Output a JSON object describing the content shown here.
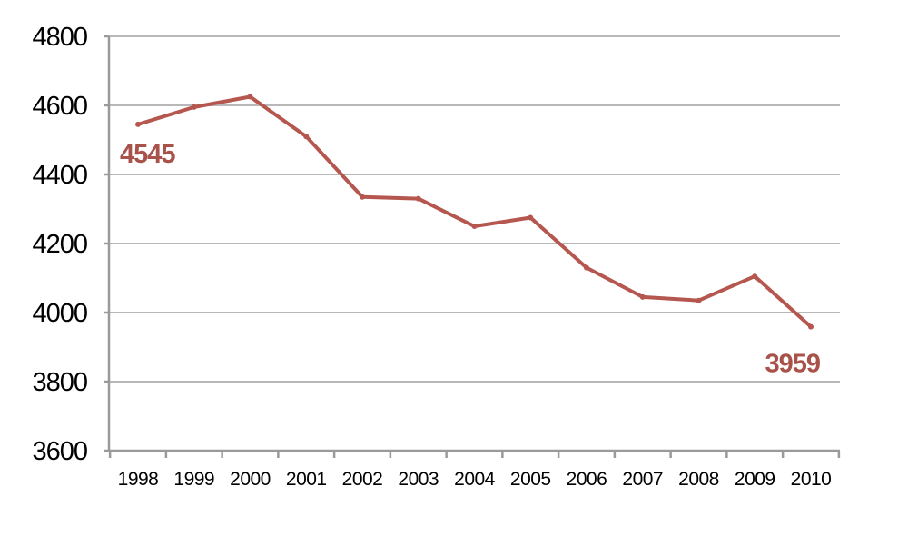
{
  "chart_data": {
    "type": "line",
    "title": "",
    "xlabel": "",
    "ylabel": "",
    "categories": [
      "1998",
      "1999",
      "2000",
      "2001",
      "2002",
      "2003",
      "2004",
      "2005",
      "2006",
      "2007",
      "2008",
      "2009",
      "2010"
    ],
    "series": [
      {
        "values": [
          4545,
          4595,
          4625,
          4510,
          4335,
          4330,
          4250,
          4275,
          4130,
          4045,
          4035,
          4105,
          3959
        ],
        "color": "#b5564f"
      }
    ],
    "ylim": [
      3600,
      4800
    ],
    "yticks": [
      4800,
      4600,
      4400,
      4200,
      4000,
      3800,
      3600
    ],
    "grid": true,
    "legend": "none",
    "annotations": [
      {
        "index": 0,
        "text": "4545"
      },
      {
        "index": 12,
        "text": "3959"
      }
    ],
    "annotation_color": "#a8524a"
  }
}
